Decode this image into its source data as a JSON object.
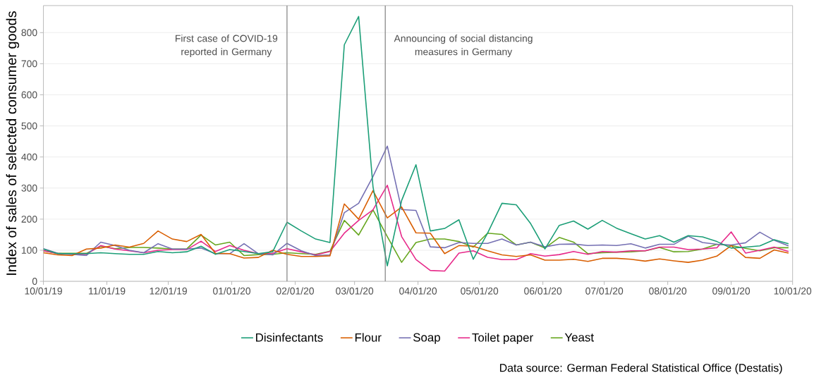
{
  "chart_data": {
    "type": "line",
    "ylabel": "Index of sales of selected consumer goods",
    "x": [
      "2019-10-01",
      "2019-10-08",
      "2019-10-15",
      "2019-10-22",
      "2019-10-29",
      "2019-11-05",
      "2019-11-12",
      "2019-11-19",
      "2019-11-26",
      "2019-12-03",
      "2019-12-10",
      "2019-12-17",
      "2019-12-24",
      "2019-12-31",
      "2020-01-07",
      "2020-01-14",
      "2020-01-21",
      "2020-01-28",
      "2020-02-04",
      "2020-02-11",
      "2020-02-18",
      "2020-02-25",
      "2020-03-03",
      "2020-03-10",
      "2020-03-17",
      "2020-03-24",
      "2020-03-31",
      "2020-04-07",
      "2020-04-14",
      "2020-04-21",
      "2020-04-28",
      "2020-05-05",
      "2020-05-12",
      "2020-05-19",
      "2020-05-26",
      "2020-06-02",
      "2020-06-09",
      "2020-06-16",
      "2020-06-23",
      "2020-06-30",
      "2020-07-07",
      "2020-07-14",
      "2020-07-21",
      "2020-07-28",
      "2020-08-04",
      "2020-08-11",
      "2020-08-18",
      "2020-08-25",
      "2020-09-01",
      "2020-09-08",
      "2020-09-15",
      "2020-09-22",
      "2020-09-29"
    ],
    "series": [
      {
        "name": "Disinfectants",
        "color": "#1b9e77",
        "values": [
          104,
          89,
          89,
          89,
          92,
          89,
          87,
          87,
          96,
          92,
          95,
          113,
          87,
          102,
          96,
          89,
          95,
          190,
          162,
          136,
          125,
          761,
          852,
          305,
          50,
          260,
          375,
          162,
          170,
          198,
          71,
          155,
          251,
          246,
          186,
          104,
          180,
          194,
          168,
          196,
          171,
          153,
          136,
          147,
          126,
          147,
          143,
          128,
          107,
          110,
          114,
          134,
          121
        ]
      },
      {
        "name": "Flour",
        "color": "#d95f02",
        "values": [
          92,
          85,
          83,
          104,
          107,
          117,
          110,
          122,
          162,
          136,
          128,
          151,
          90,
          89,
          75,
          77,
          100,
          87,
          80,
          80,
          82,
          249,
          200,
          292,
          204,
          239,
          156,
          155,
          89,
          115,
          113,
          98,
          85,
          80,
          85,
          68,
          68,
          71,
          64,
          74,
          74,
          71,
          65,
          72,
          66,
          61,
          68,
          81,
          115,
          77,
          74,
          101,
          91
        ]
      },
      {
        "name": "Soap",
        "color": "#7570b3",
        "values": [
          105,
          90,
          87,
          83,
          126,
          115,
          100,
          92,
          121,
          104,
          104,
          107,
          89,
          89,
          121,
          89,
          85,
          122,
          98,
          83,
          85,
          221,
          251,
          337,
          435,
          231,
          228,
          111,
          108,
          125,
          122,
          122,
          136,
          117,
          126,
          111,
          119,
          120,
          115,
          117,
          115,
          121,
          107,
          119,
          119,
          145,
          125,
          119,
          117,
          124,
          158,
          132,
          114
        ]
      },
      {
        "name": "Toilet paper",
        "color": "#e7298a",
        "values": [
          99,
          89,
          87,
          87,
          115,
          104,
          98,
          92,
          100,
          102,
          102,
          129,
          96,
          115,
          100,
          89,
          90,
          105,
          95,
          85,
          96,
          155,
          196,
          230,
          309,
          144,
          70,
          35,
          33,
          91,
          98,
          77,
          70,
          70,
          89,
          81,
          86,
          96,
          87,
          96,
          94,
          98,
          98,
          110,
          110,
          102,
          104,
          108,
          159,
          91,
          100,
          110,
          96
        ]
      },
      {
        "name": "Yeast",
        "color": "#66a61e",
        "values": [
          98,
          90,
          90,
          90,
          113,
          105,
          109,
          109,
          107,
          104,
          104,
          149,
          117,
          126,
          83,
          86,
          87,
          92,
          89,
          87,
          97,
          196,
          149,
          230,
          144,
          61,
          125,
          136,
          136,
          128,
          110,
          155,
          151,
          117,
          126,
          107,
          141,
          126,
          89,
          92,
          94,
          95,
          98,
          109,
          95,
          96,
          104,
          119,
          115,
          106,
          98,
          108,
          108
        ]
      }
    ],
    "xlim": [
      "2019-10-01",
      "2020-10-01"
    ],
    "xticks": [
      {
        "value": "2019-10-01",
        "label": "10/01/19"
      },
      {
        "value": "2019-11-01",
        "label": "11/01/19"
      },
      {
        "value": "2019-12-01",
        "label": "12/01/19"
      },
      {
        "value": "2020-01-01",
        "label": "01/01/20"
      },
      {
        "value": "2020-02-01",
        "label": "02/01/20"
      },
      {
        "value": "2020-03-01",
        "label": "03/01/20"
      },
      {
        "value": "2020-04-01",
        "label": "04/01/20"
      },
      {
        "value": "2020-05-01",
        "label": "05/01/20"
      },
      {
        "value": "2020-06-01",
        "label": "06/01/20"
      },
      {
        "value": "2020-07-01",
        "label": "07/01/20"
      },
      {
        "value": "2020-08-01",
        "label": "08/01/20"
      },
      {
        "value": "2020-09-01",
        "label": "09/01/20"
      },
      {
        "value": "2020-10-01",
        "label": "10/01/20"
      }
    ],
    "ylim": [
      0,
      887
    ],
    "yticks": [
      0,
      100,
      200,
      300,
      400,
      500,
      600,
      700,
      800
    ],
    "ref_lines": [
      {
        "axis": "x",
        "value": "2020-01-28",
        "label": "First case of COVID-19 reported in Germany",
        "color": "#7f7f7f"
      },
      {
        "axis": "x",
        "value": "2020-03-16",
        "label": "Announcing of social distancing measures in Germany",
        "color": "#7f7f7f"
      }
    ],
    "annotations": [
      "Data source: German Federal Statistical Office (Destatis)"
    ],
    "grid": "y",
    "legend": "bottom",
    "marker": "none",
    "line_style": "solid"
  }
}
